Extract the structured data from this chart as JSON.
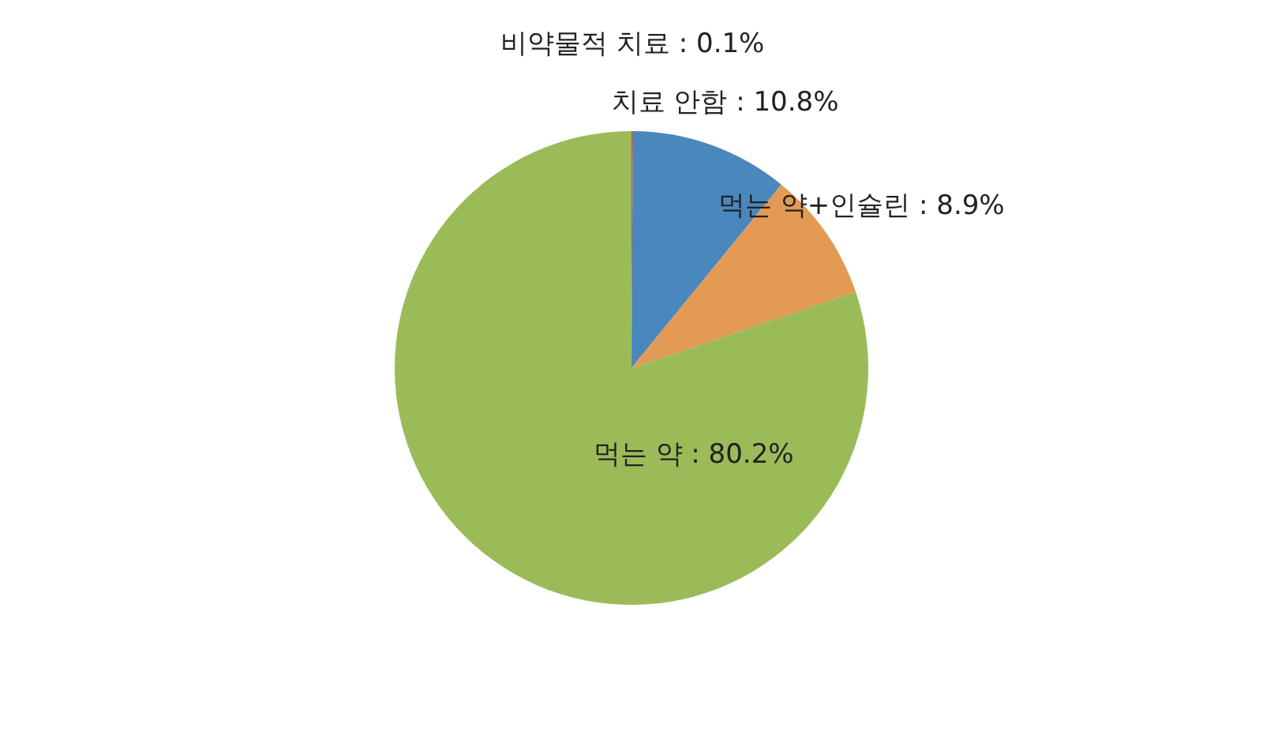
{
  "chart_data": {
    "type": "pie",
    "categories": [
      "비약물적 치료",
      "치료 안함",
      "먹는 약+인슐린",
      "먹는 약"
    ],
    "values": [
      0.1,
      10.8,
      8.9,
      80.2
    ],
    "colors": [
      "#c0504d",
      "#4a87bd",
      "#e39a55",
      "#9bbb59"
    ],
    "value_labels": [
      "0.1%",
      "10.8%",
      "8.9%",
      "80.2%"
    ]
  }
}
